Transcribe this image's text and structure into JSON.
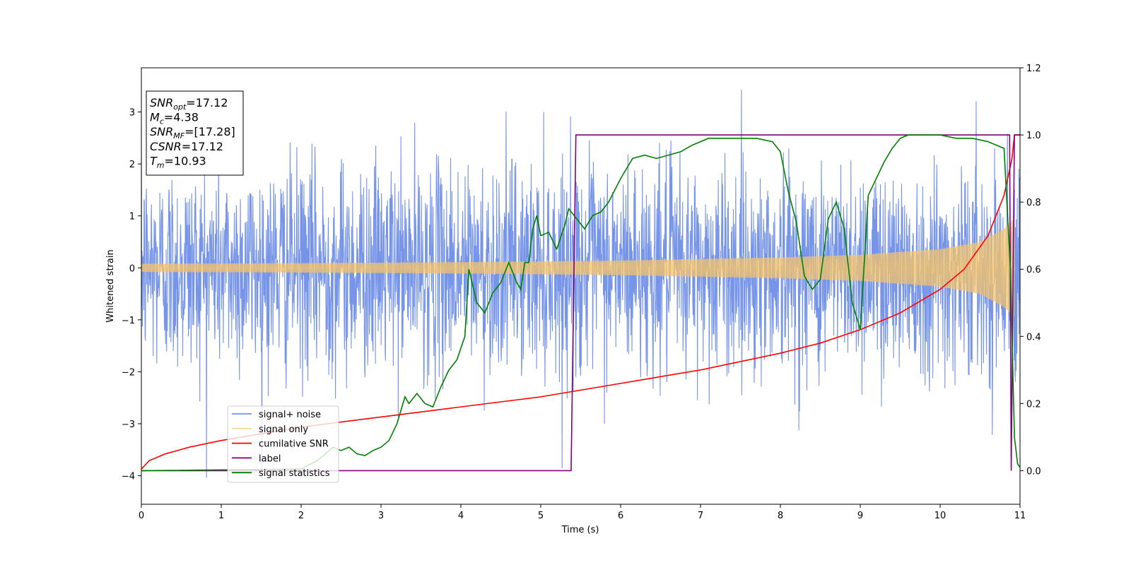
{
  "chart_data": {
    "type": "line",
    "xlabel": "Time (s)",
    "ylabel": "Whitened strain",
    "xlim": [
      0,
      11
    ],
    "ylim_left": [
      -4.55,
      3.85
    ],
    "ylim_right": [
      -0.1,
      1.2
    ],
    "x_ticks": [
      "0",
      "1",
      "2",
      "3",
      "4",
      "5",
      "6",
      "7",
      "8",
      "9",
      "10",
      "11"
    ],
    "y_ticks_left": [
      "−4",
      "−3",
      "−2",
      "−1",
      "0",
      "1",
      "2",
      "3"
    ],
    "y_ticks_right": [
      "0.0",
      "0.2",
      "0.4",
      "0.6",
      "0.8",
      "1.0",
      "1.2"
    ],
    "grid": false,
    "legend_position": "lower-left",
    "info_box": {
      "lines": [
        {
          "base": "SNR",
          "sub": "opt",
          "rest": "=17.12"
        },
        {
          "base": "M",
          "sub": "c",
          "rest": "=4.38"
        },
        {
          "base": "SNR",
          "sub": "MF",
          "rest": "=[17.28]"
        },
        {
          "base": "CSNR",
          "sub": "",
          "rest": "=17.12"
        },
        {
          "base": "T",
          "sub": "m",
          "rest": "=10.93"
        }
      ]
    },
    "series": [
      {
        "name": "signal+ noise",
        "axis": "left",
        "color": "#7795E8",
        "kind": "noise",
        "std": 1.0,
        "spike_max": 3.5
      },
      {
        "name": "signal only",
        "axis": "left",
        "color": "#F5C36A",
        "kind": "chirp_envelope",
        "envelope": {
          "x": [
            0,
            2,
            4,
            6,
            8,
            9,
            10,
            10.5,
            10.8,
            10.93
          ],
          "amp": [
            0.08,
            0.09,
            0.11,
            0.14,
            0.2,
            0.25,
            0.36,
            0.5,
            0.75,
            0.95
          ]
        }
      },
      {
        "name": "cumilative SNR",
        "axis": "right",
        "color": "#FF0000",
        "x": [
          0,
          0.1,
          0.3,
          0.6,
          1,
          1.5,
          2,
          2.5,
          3,
          3.5,
          4,
          4.5,
          5,
          5.5,
          6,
          6.5,
          7,
          7.5,
          8,
          8.5,
          9,
          9.5,
          10,
          10.3,
          10.6,
          10.8,
          10.9,
          10.93,
          11
        ],
        "y": [
          0.005,
          0.03,
          0.05,
          0.07,
          0.09,
          0.11,
          0.13,
          0.145,
          0.16,
          0.175,
          0.19,
          0.205,
          0.22,
          0.24,
          0.26,
          0.28,
          0.3,
          0.325,
          0.35,
          0.38,
          0.42,
          0.47,
          0.54,
          0.6,
          0.7,
          0.82,
          0.93,
          1.0,
          1.0
        ]
      },
      {
        "name": "label",
        "axis": "right",
        "color": "#800080",
        "x": [
          0,
          5.38,
          5.44,
          10.87,
          10.89,
          10.93,
          11
        ],
        "y": [
          0,
          0,
          1,
          1,
          0,
          1,
          1
        ]
      },
      {
        "name": "signal statistics",
        "axis": "right",
        "color": "#008000",
        "x": [
          0,
          2.0,
          2.2,
          2.4,
          2.5,
          2.6,
          2.7,
          2.8,
          2.9,
          3.0,
          3.1,
          3.2,
          3.3,
          3.35,
          3.45,
          3.55,
          3.65,
          3.75,
          3.85,
          3.95,
          4.05,
          4.1,
          4.2,
          4.3,
          4.4,
          4.5,
          4.6,
          4.7,
          4.75,
          4.8,
          4.85,
          4.9,
          4.95,
          5.0,
          5.1,
          5.2,
          5.3,
          5.35,
          5.45,
          5.55,
          5.65,
          5.75,
          5.85,
          6.0,
          6.15,
          6.3,
          6.45,
          6.6,
          6.75,
          6.9,
          7.1,
          7.3,
          7.5,
          7.7,
          7.9,
          8.0,
          8.1,
          8.2,
          8.3,
          8.4,
          8.5,
          8.6,
          8.7,
          8.8,
          8.9,
          9.0,
          9.1,
          9.2,
          9.3,
          9.4,
          9.5,
          9.6,
          9.8,
          10.0,
          10.2,
          10.4,
          10.6,
          10.7,
          10.8,
          10.88,
          10.93,
          10.97,
          11.0
        ],
        "y": [
          0.0,
          0.005,
          0.03,
          0.07,
          0.06,
          0.07,
          0.05,
          0.045,
          0.06,
          0.07,
          0.09,
          0.14,
          0.22,
          0.2,
          0.23,
          0.2,
          0.19,
          0.25,
          0.3,
          0.33,
          0.4,
          0.6,
          0.5,
          0.47,
          0.53,
          0.56,
          0.62,
          0.56,
          0.54,
          0.62,
          0.62,
          0.72,
          0.76,
          0.7,
          0.71,
          0.66,
          0.73,
          0.78,
          0.75,
          0.72,
          0.76,
          0.77,
          0.8,
          0.87,
          0.93,
          0.94,
          0.93,
          0.94,
          0.95,
          0.97,
          0.99,
          0.99,
          0.99,
          0.99,
          0.98,
          0.95,
          0.83,
          0.74,
          0.58,
          0.54,
          0.57,
          0.75,
          0.8,
          0.72,
          0.5,
          0.42,
          0.82,
          0.87,
          0.92,
          0.96,
          0.99,
          1.0,
          1.0,
          1.0,
          0.99,
          0.99,
          0.98,
          0.97,
          0.96,
          0.6,
          0.1,
          0.02,
          0.01
        ]
      }
    ]
  }
}
